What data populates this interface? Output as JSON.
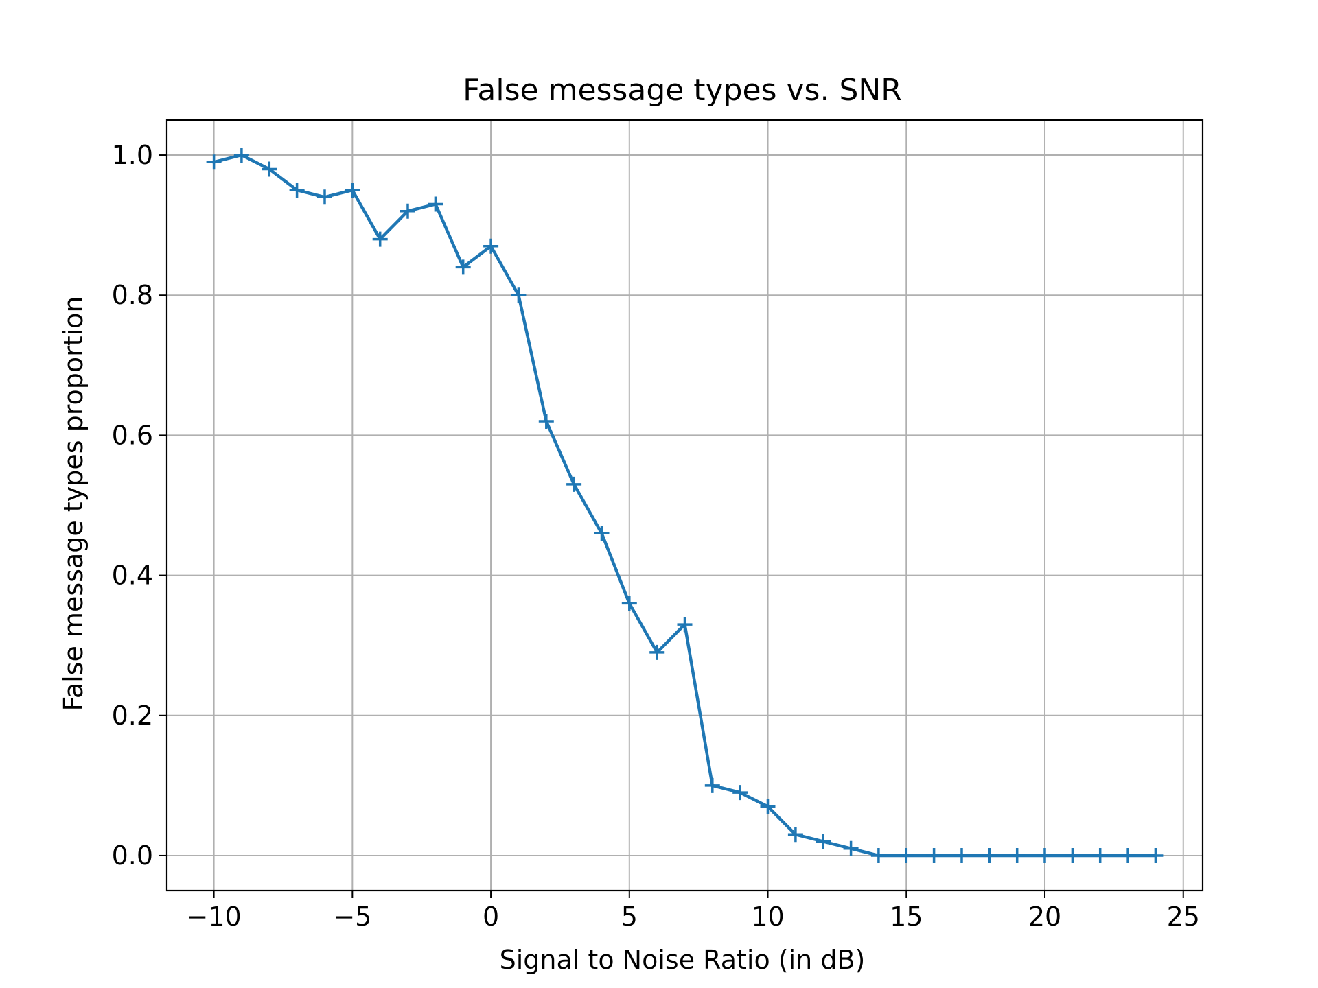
{
  "chart_data": {
    "type": "line",
    "title": "False  message types vs. SNR",
    "xlabel": "Signal to Noise Ratio (in dB)",
    "ylabel": "False message types proportion",
    "xlim": [
      -11.7,
      25.7
    ],
    "ylim": [
      -0.05,
      1.05
    ],
    "xticks": [
      -10,
      -5,
      0,
      5,
      10,
      15,
      20,
      25
    ],
    "xtick_labels": [
      "−10",
      "−5",
      "0",
      "5",
      "10",
      "15",
      "20",
      "25"
    ],
    "yticks": [
      0.0,
      0.2,
      0.4,
      0.6,
      0.8,
      1.0
    ],
    "ytick_labels": [
      "0.0",
      "0.2",
      "0.4",
      "0.6",
      "0.8",
      "1.0"
    ],
    "grid": true,
    "marker": "+",
    "line_color": "#1f77b4",
    "x": [
      -10,
      -9,
      -8,
      -7,
      -6,
      -5,
      -4,
      -3,
      -2,
      -1,
      0,
      1,
      2,
      3,
      4,
      5,
      6,
      7,
      8,
      9,
      10,
      11,
      12,
      13,
      14,
      15,
      16,
      17,
      18,
      19,
      20,
      21,
      22,
      23,
      24
    ],
    "series": [
      {
        "values": [
          0.99,
          1.0,
          0.98,
          0.95,
          0.94,
          0.95,
          0.88,
          0.92,
          0.93,
          0.84,
          0.87,
          0.8,
          0.62,
          0.53,
          0.46,
          0.36,
          0.29,
          0.33,
          0.1,
          0.09,
          0.07,
          0.03,
          0.02,
          0.01,
          0.0,
          0.0,
          0.0,
          0.0,
          0.0,
          0.0,
          0.0,
          0.0,
          0.0,
          0.0,
          0.0
        ]
      }
    ]
  }
}
